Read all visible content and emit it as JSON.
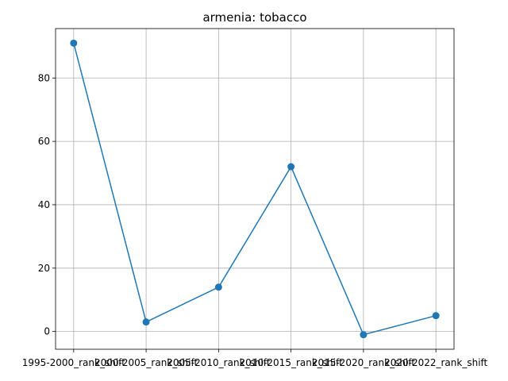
{
  "chart_data": {
    "type": "line",
    "title": "armenia: tobacco",
    "xlabel": "",
    "ylabel": "",
    "categories": [
      "1995-2000_rank_shift",
      "2000-2005_rank_shift",
      "2005-2010_rank_shift",
      "2010-2015_rank_shift",
      "2015-2020_rank_shift",
      "2020-2022_rank_shift"
    ],
    "series": [
      {
        "values": [
          91,
          3,
          14,
          52,
          -1,
          5
        ],
        "color": "#1f77b4"
      }
    ],
    "ylim": [
      -5.6,
      95.6
    ],
    "yticks": [
      0,
      20,
      40,
      60,
      80
    ],
    "grid": true,
    "legend": "none"
  }
}
